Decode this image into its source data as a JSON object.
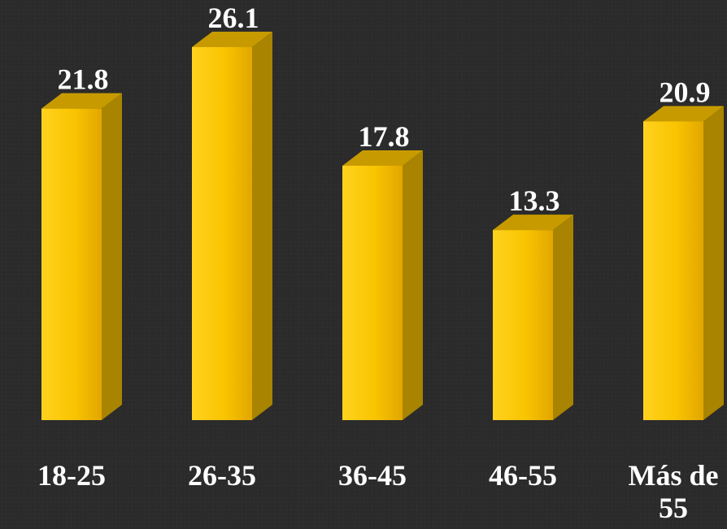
{
  "chart_data": {
    "type": "bar",
    "style": "3d",
    "categories": [
      "18-25",
      "26-35",
      "36-45",
      "46-55",
      "Más de 55"
    ],
    "category_lines": [
      [
        "18-25"
      ],
      [
        "26-35"
      ],
      [
        "36-45"
      ],
      [
        "46-55"
      ],
      [
        "Más de",
        "55"
      ]
    ],
    "values": [
      21.8,
      26.1,
      17.8,
      13.3,
      20.9
    ],
    "data_labels": [
      "21.8",
      "26.1",
      "17.8",
      "13.3",
      "20.9"
    ],
    "title": "",
    "xlabel": "",
    "ylabel": "",
    "ylim": [
      0,
      26.1
    ],
    "grid": false,
    "legend": "none",
    "colors": {
      "bar_front_light": "#ffcf1a",
      "bar_front_dark": "#e0a800",
      "bar_side": "#a88400",
      "bar_top": "#c79b00",
      "background": "#2b2b2b",
      "text": "#ffffff"
    }
  }
}
